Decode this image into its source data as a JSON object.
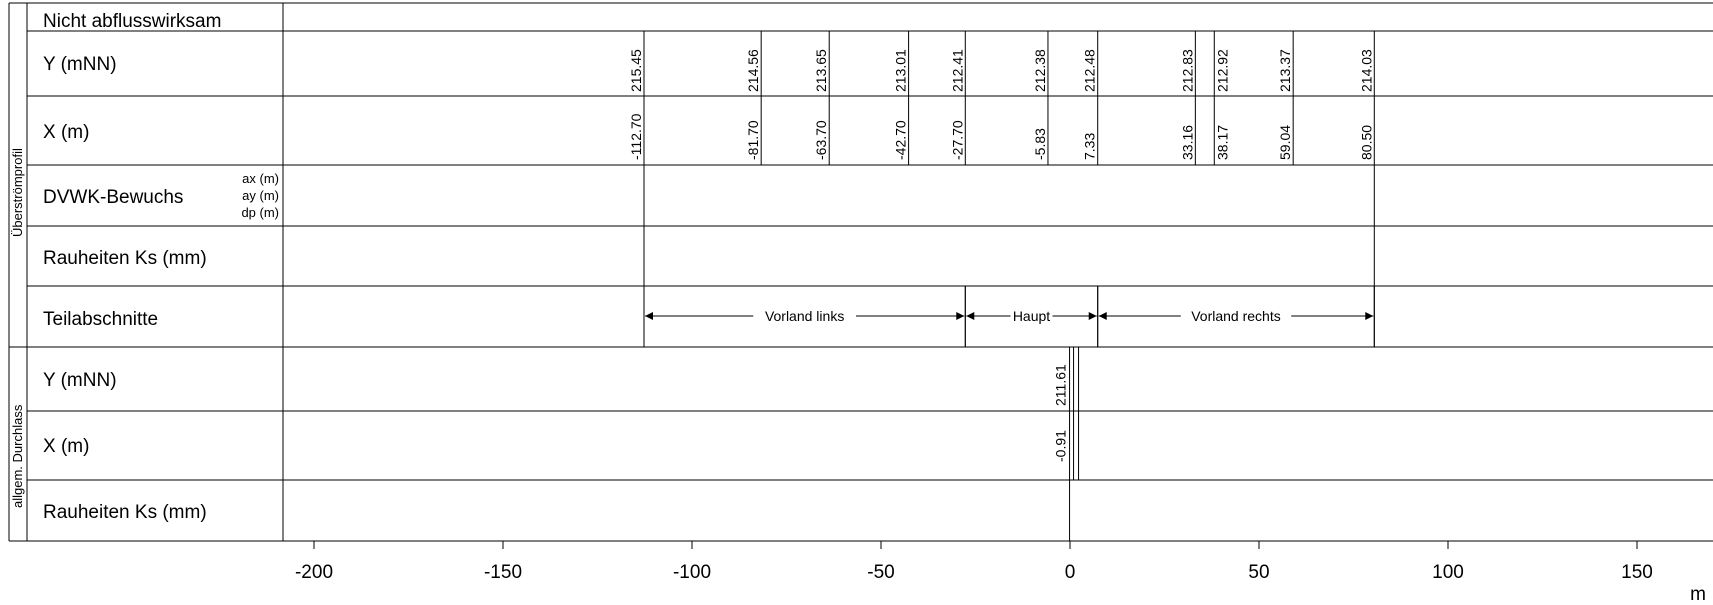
{
  "sections": {
    "upper": "Überströmprofil",
    "lower": "allgem. Durchlass"
  },
  "rows": {
    "nicht": "Nicht abflusswirksam",
    "y1": "Y (mNN)",
    "x1": "X (m)",
    "dvwk": "DVWK-Bewuchs",
    "dvwk_ax": "ax (m)",
    "dvwk_ay": "ay (m)",
    "dvwk_dp": "dp (m)",
    "rauh1": "Rauheiten Ks (mm)",
    "teil": "Teilabschnitte",
    "y2": "Y (mNN)",
    "x2": "X (m)",
    "rauh2": "Rauheiten Ks (mm)"
  },
  "axis": {
    "ticks": [
      "-200",
      "-150",
      "-100",
      "-50",
      "0",
      "50",
      "100",
      "150"
    ],
    "unit": "m"
  },
  "chart_data": {
    "type": "table",
    "upper_points": [
      {
        "x": "-112.70",
        "y": "215.45"
      },
      {
        "x": "-81.70",
        "y": "214.56"
      },
      {
        "x": "-63.70",
        "y": "213.65"
      },
      {
        "x": "-42.70",
        "y": "213.01"
      },
      {
        "x": "-27.70",
        "y": "212.41"
      },
      {
        "x": "-5.83",
        "y": "212.38"
      },
      {
        "x": "7.33",
        "y": "212.48"
      },
      {
        "x": "33.16",
        "y": "212.83"
      },
      {
        "x": "38.17",
        "y": "212.92"
      },
      {
        "x": "59.04",
        "y": "213.37"
      },
      {
        "x": "80.50",
        "y": "214.03"
      }
    ],
    "segments": [
      {
        "label": "Vorland links",
        "from": -112.7,
        "to": -27.7
      },
      {
        "label": "Haupt",
        "from": -27.7,
        "to": 7.33
      },
      {
        "label": "Vorland rechts",
        "from": 7.33,
        "to": 80.5
      }
    ],
    "lower_points": [
      {
        "x": "-0.91",
        "y": "211.61"
      }
    ],
    "xlim": [
      -210,
      170
    ]
  }
}
